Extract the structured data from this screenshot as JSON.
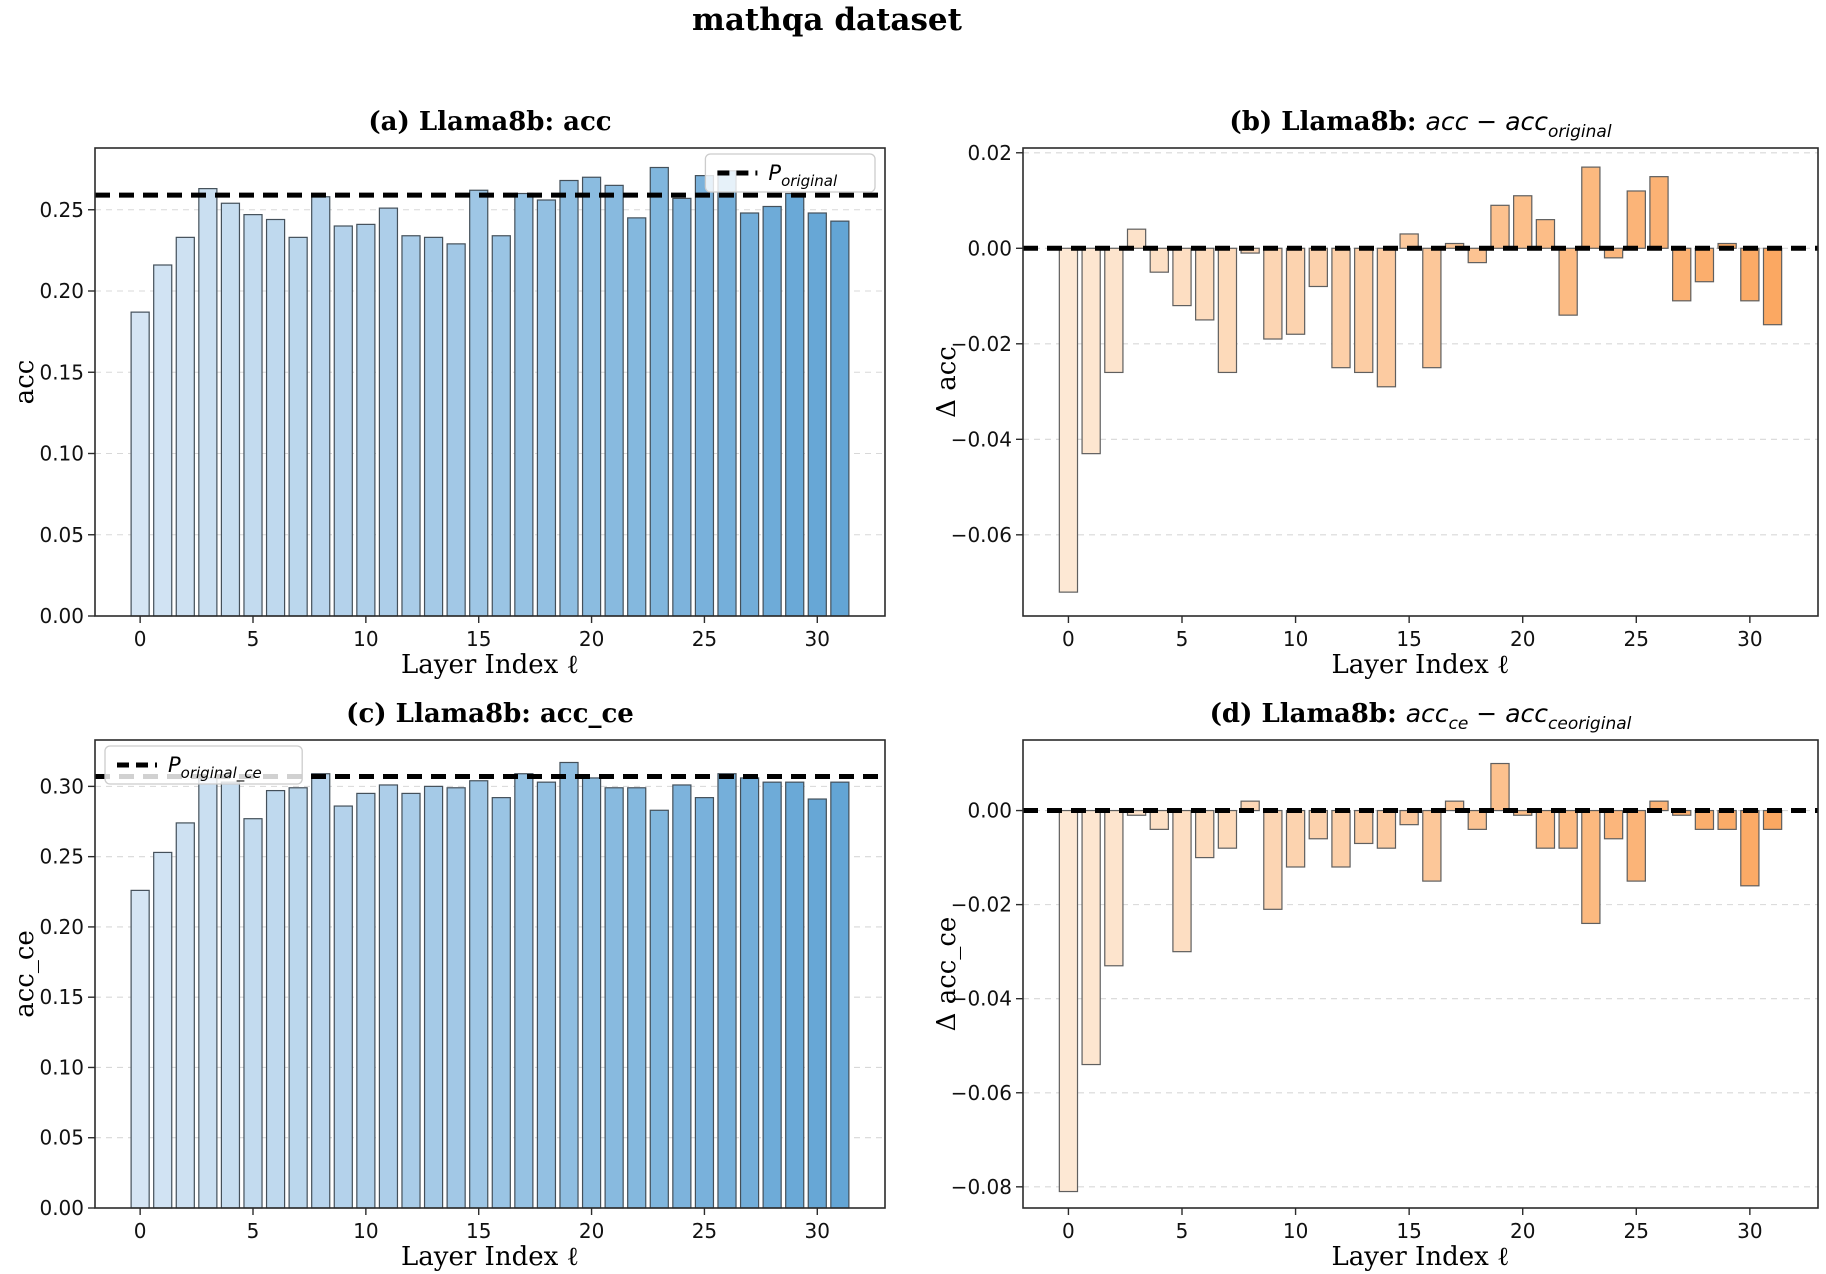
{
  "title": "mathqa dataset",
  "xlabel": "Layer Index ℓ",
  "xticks": [
    0,
    5,
    10,
    15,
    20,
    25,
    30
  ],
  "colors": {
    "blue_start": "#d5e5f4",
    "blue_end": "#63a5d5",
    "blue_edge": "#44505a",
    "orange_start": "#fde8d4",
    "orange_end": "#fba862",
    "orange_edge": "#5f5f5f",
    "ref_line": "#000000",
    "grid": "#d8d8d8",
    "spine": "#2b2b2b",
    "legend_border": "#cccccc"
  },
  "chart_data": [
    {
      "panel": "a",
      "type": "bar",
      "title_runs": [
        {
          "text": "(a) Llama8b: acc",
          "style": "bold"
        }
      ],
      "ylabel": "acc",
      "xlabel": "Layer Index ℓ",
      "palette": "blue",
      "x": [
        0,
        1,
        2,
        3,
        4,
        5,
        6,
        7,
        8,
        9,
        10,
        11,
        12,
        13,
        14,
        15,
        16,
        17,
        18,
        19,
        20,
        21,
        22,
        23,
        24,
        25,
        26,
        27,
        28,
        29,
        30,
        31
      ],
      "values": [
        0.187,
        0.216,
        0.233,
        0.263,
        0.254,
        0.247,
        0.244,
        0.233,
        0.258,
        0.24,
        0.241,
        0.251,
        0.234,
        0.233,
        0.229,
        0.262,
        0.234,
        0.26,
        0.256,
        0.268,
        0.27,
        0.265,
        0.245,
        0.276,
        0.257,
        0.271,
        0.274,
        0.248,
        0.252,
        0.26,
        0.248,
        0.243
      ],
      "yticks": [
        0.0,
        0.05,
        0.1,
        0.15,
        0.2,
        0.25
      ],
      "ylim": [
        0,
        0.288
      ],
      "xlim": [
        -2,
        33
      ],
      "grid": true,
      "ref_line": {
        "value": 0.259,
        "legend": {
          "main": "P",
          "sub": "original",
          "pos": "right"
        }
      }
    },
    {
      "panel": "b",
      "type": "bar",
      "title_runs": [
        {
          "text": "(b) Llama8b: ",
          "style": "bold"
        },
        {
          "text": "acc",
          "style": "italic"
        },
        {
          "text": " − ",
          "style": "italic"
        },
        {
          "text": "acc",
          "style": "italic"
        },
        {
          "text": "original",
          "style": "italic-sub"
        }
      ],
      "ylabel": "Δ acc",
      "xlabel": "Layer Index ℓ",
      "palette": "orange",
      "x": [
        0,
        1,
        2,
        3,
        4,
        5,
        6,
        7,
        8,
        9,
        10,
        11,
        12,
        13,
        14,
        15,
        16,
        17,
        18,
        19,
        20,
        21,
        22,
        23,
        24,
        25,
        26,
        27,
        28,
        29,
        30,
        31
      ],
      "values": [
        -0.072,
        -0.043,
        -0.026,
        0.004,
        -0.005,
        -0.012,
        -0.015,
        -0.026,
        -0.001,
        -0.019,
        -0.018,
        -0.008,
        -0.025,
        -0.026,
        -0.029,
        0.003,
        -0.025,
        0.001,
        -0.003,
        0.009,
        0.011,
        0.006,
        -0.014,
        0.017,
        -0.002,
        0.012,
        0.015,
        -0.011,
        -0.007,
        0.001,
        -0.011,
        -0.016
      ],
      "yticks": [
        0.02,
        0.0,
        -0.02,
        -0.04,
        -0.06
      ],
      "ylim": [
        -0.077,
        0.021
      ],
      "xlim": [
        -2,
        33
      ],
      "grid": true,
      "ref_line": {
        "value": 0.0
      }
    },
    {
      "panel": "c",
      "type": "bar",
      "title_runs": [
        {
          "text": "(c) Llama8b: acc_ce",
          "style": "bold"
        }
      ],
      "ylabel": "acc_ce",
      "xlabel": "Layer Index ℓ",
      "palette": "blue",
      "x": [
        0,
        1,
        2,
        3,
        4,
        5,
        6,
        7,
        8,
        9,
        10,
        11,
        12,
        13,
        14,
        15,
        16,
        17,
        18,
        19,
        20,
        21,
        22,
        23,
        24,
        25,
        26,
        27,
        28,
        29,
        30,
        31
      ],
      "values": [
        0.226,
        0.253,
        0.274,
        0.306,
        0.303,
        0.277,
        0.297,
        0.299,
        0.309,
        0.286,
        0.295,
        0.301,
        0.295,
        0.3,
        0.299,
        0.304,
        0.292,
        0.309,
        0.303,
        0.317,
        0.306,
        0.299,
        0.299,
        0.283,
        0.301,
        0.292,
        0.309,
        0.306,
        0.303,
        0.303,
        0.291,
        0.303
      ],
      "yticks": [
        0.0,
        0.05,
        0.1,
        0.15,
        0.2,
        0.25,
        0.3
      ],
      "ylim": [
        0,
        0.333
      ],
      "xlim": [
        -2,
        33
      ],
      "grid": true,
      "ref_line": {
        "value": 0.307,
        "legend": {
          "main": "P",
          "sub": "original_ce",
          "pos": "left"
        }
      }
    },
    {
      "panel": "d",
      "type": "bar",
      "title_runs": [
        {
          "text": "(d) Llama8b: ",
          "style": "bold"
        },
        {
          "text": "acc",
          "style": "italic"
        },
        {
          "text": "ce",
          "style": "italic-sub"
        },
        {
          "text": " − ",
          "style": "italic"
        },
        {
          "text": "acc",
          "style": "italic"
        },
        {
          "text": "ceoriginal",
          "style": "italic-sub"
        }
      ],
      "ylabel": "Δ acc_ce",
      "xlabel": "Layer Index ℓ",
      "palette": "orange",
      "x": [
        0,
        1,
        2,
        3,
        4,
        5,
        6,
        7,
        8,
        9,
        10,
        11,
        12,
        13,
        14,
        15,
        16,
        17,
        18,
        19,
        20,
        21,
        22,
        23,
        24,
        25,
        26,
        27,
        28,
        29,
        30,
        31
      ],
      "values": [
        -0.081,
        -0.054,
        -0.033,
        -0.001,
        -0.004,
        -0.03,
        -0.01,
        -0.008,
        0.002,
        -0.021,
        -0.012,
        -0.006,
        -0.012,
        -0.007,
        -0.008,
        -0.003,
        -0.015,
        0.002,
        -0.004,
        0.01,
        -0.001,
        -0.008,
        -0.008,
        -0.024,
        -0.006,
        -0.015,
        0.002,
        -0.001,
        -0.004,
        -0.004,
        -0.016,
        -0.004
      ],
      "yticks": [
        0.0,
        -0.02,
        -0.04,
        -0.06,
        -0.08
      ],
      "ylim": [
        -0.0845,
        0.015
      ],
      "xlim": [
        -2,
        33
      ],
      "grid": true,
      "ref_line": {
        "value": 0.0
      }
    }
  ]
}
